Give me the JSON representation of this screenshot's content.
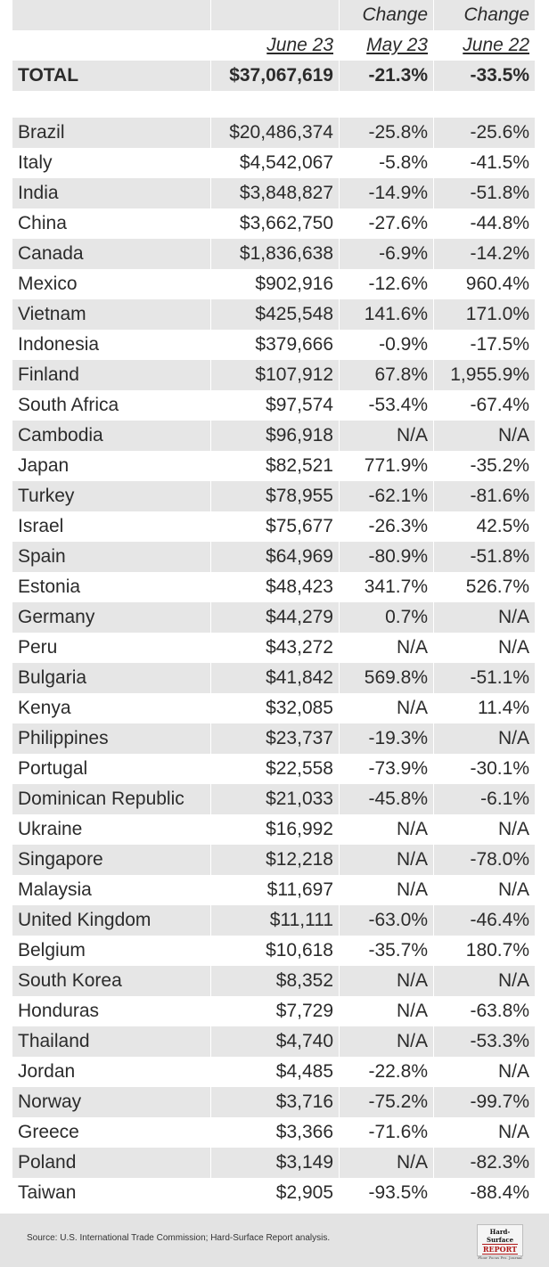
{
  "header": {
    "change_label_1": "Change",
    "change_label_2": "Change",
    "col_current": "June 23",
    "col_prev_month": "May 23",
    "col_prev_year": "June 22"
  },
  "total": {
    "label": "TOTAL",
    "value": "$37,067,619",
    "change_month": "-21.3%",
    "change_year": "-33.5%"
  },
  "rows": [
    {
      "country": "Brazil",
      "value": "$20,486,374",
      "m": "-25.8%",
      "y": "-25.6%"
    },
    {
      "country": "Italy",
      "value": "$4,542,067",
      "m": "-5.8%",
      "y": "-41.5%"
    },
    {
      "country": "India",
      "value": "$3,848,827",
      "m": "-14.9%",
      "y": "-51.8%"
    },
    {
      "country": "China",
      "value": "$3,662,750",
      "m": "-27.6%",
      "y": "-44.8%"
    },
    {
      "country": "Canada",
      "value": "$1,836,638",
      "m": "-6.9%",
      "y": "-14.2%"
    },
    {
      "country": "Mexico",
      "value": "$902,916",
      "m": "-12.6%",
      "y": "960.4%"
    },
    {
      "country": "Vietnam",
      "value": "$425,548",
      "m": "141.6%",
      "y": "171.0%"
    },
    {
      "country": "Indonesia",
      "value": "$379,666",
      "m": "-0.9%",
      "y": "-17.5%"
    },
    {
      "country": "Finland",
      "value": "$107,912",
      "m": "67.8%",
      "y": "1,955.9%"
    },
    {
      "country": "South Africa",
      "value": "$97,574",
      "m": "-53.4%",
      "y": "-67.4%"
    },
    {
      "country": "Cambodia",
      "value": "$96,918",
      "m": "N/A",
      "y": "N/A"
    },
    {
      "country": "Japan",
      "value": "$82,521",
      "m": "771.9%",
      "y": "-35.2%"
    },
    {
      "country": "Turkey",
      "value": "$78,955",
      "m": "-62.1%",
      "y": "-81.6%"
    },
    {
      "country": "Israel",
      "value": "$75,677",
      "m": "-26.3%",
      "y": "42.5%"
    },
    {
      "country": "Spain",
      "value": "$64,969",
      "m": "-80.9%",
      "y": "-51.8%"
    },
    {
      "country": "Estonia",
      "value": "$48,423",
      "m": "341.7%",
      "y": "526.7%"
    },
    {
      "country": "Germany",
      "value": "$44,279",
      "m": "0.7%",
      "y": "N/A"
    },
    {
      "country": "Peru",
      "value": "$43,272",
      "m": "N/A",
      "y": "N/A"
    },
    {
      "country": "Bulgaria",
      "value": "$41,842",
      "m": "569.8%",
      "y": "-51.1%"
    },
    {
      "country": "Kenya",
      "value": "$32,085",
      "m": "N/A",
      "y": "11.4%"
    },
    {
      "country": "Philippines",
      "value": "$23,737",
      "m": "-19.3%",
      "y": "N/A"
    },
    {
      "country": "Portugal",
      "value": "$22,558",
      "m": "-73.9%",
      "y": "-30.1%"
    },
    {
      "country": "Dominican Republic",
      "value": "$21,033",
      "m": "-45.8%",
      "y": "-6.1%"
    },
    {
      "country": "Ukraine",
      "value": "$16,992",
      "m": "N/A",
      "y": "N/A"
    },
    {
      "country": "Singapore",
      "value": "$12,218",
      "m": "N/A",
      "y": "-78.0%"
    },
    {
      "country": "Malaysia",
      "value": "$11,697",
      "m": "N/A",
      "y": "N/A"
    },
    {
      "country": "United Kingdom",
      "value": "$11,111",
      "m": "-63.0%",
      "y": "-46.4%"
    },
    {
      "country": "Belgium",
      "value": "$10,618",
      "m": "-35.7%",
      "y": "180.7%"
    },
    {
      "country": "South Korea",
      "value": "$8,352",
      "m": "N/A",
      "y": "N/A"
    },
    {
      "country": "Honduras",
      "value": "$7,729",
      "m": "N/A",
      "y": "-63.8%"
    },
    {
      "country": "Thailand",
      "value": "$4,740",
      "m": "N/A",
      "y": "-53.3%"
    },
    {
      "country": "Jordan",
      "value": "$4,485",
      "m": "-22.8%",
      "y": "N/A"
    },
    {
      "country": "Norway",
      "value": "$3,716",
      "m": "-75.2%",
      "y": "-99.7%"
    },
    {
      "country": "Greece",
      "value": "$3,366",
      "m": "-71.6%",
      "y": "N/A"
    },
    {
      "country": "Poland",
      "value": "$3,149",
      "m": "N/A",
      "y": "-82.3%"
    },
    {
      "country": "Taiwan",
      "value": "$2,905",
      "m": "-93.5%",
      "y": "-88.4%"
    }
  ],
  "footer": {
    "source": "Source: U.S. International Trade Commission; Hard-Surface Report analysis.",
    "logo_line1": "Hard-Surface",
    "logo_line2": "REPORT",
    "logo_line3": "Floor Focus Pro. Journal"
  },
  "colors": {
    "shade": "#e6e6e6",
    "footer_bg": "#e3e3e3",
    "text": "#2b2b2b",
    "logo_accent": "#b01818"
  }
}
